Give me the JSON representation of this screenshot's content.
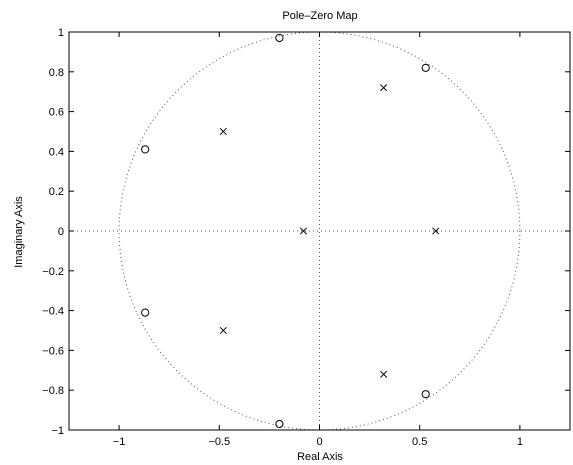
{
  "chart_data": {
    "type": "scatter",
    "title": "Pole–Zero Map",
    "xlabel": "Real Axis",
    "ylabel": "Imaginary Axis",
    "xlim": [
      -1.25,
      1.25
    ],
    "ylim": [
      -1,
      1
    ],
    "x_ticks": [
      -1,
      -0.5,
      0,
      0.5,
      1
    ],
    "x_tick_labels": [
      "−1",
      "−0.5",
      "0",
      "0.5",
      "1"
    ],
    "y_ticks": [
      1,
      0.8,
      0.6,
      0.4,
      0.2,
      0,
      -0.2,
      -0.4,
      -0.6,
      -0.8,
      -1
    ],
    "y_tick_labels": [
      "1",
      "0.8",
      "0.6",
      "0.4",
      "0.2",
      "0",
      "−0.2",
      "−0.4",
      "−0.6",
      "−0.8",
      "−1"
    ],
    "unit_circle": true,
    "crosshair_dotted": true,
    "series": [
      {
        "marker": "o",
        "points": [
          {
            "x": -0.2,
            "y": 0.97
          },
          {
            "x": 0.53,
            "y": 0.82
          },
          {
            "x": -0.87,
            "y": 0.41
          },
          {
            "x": -0.87,
            "y": -0.41
          },
          {
            "x": -0.2,
            "y": -0.97
          },
          {
            "x": 0.53,
            "y": -0.82
          }
        ]
      },
      {
        "marker": "x",
        "points": [
          {
            "x": 0.32,
            "y": 0.72
          },
          {
            "x": -0.48,
            "y": 0.5
          },
          {
            "x": -0.08,
            "y": 0
          },
          {
            "x": 0.58,
            "y": 0
          },
          {
            "x": -0.48,
            "y": -0.5
          },
          {
            "x": 0.32,
            "y": -0.72
          }
        ]
      }
    ]
  }
}
